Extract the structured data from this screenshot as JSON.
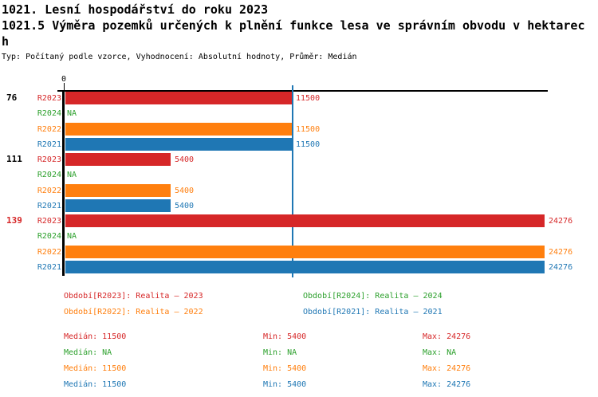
{
  "header": {
    "title": "1021. Lesní hospodářství do roku 2023",
    "subtitle": "1021.5 Výměra pozemků určených k plnění funkce lesa ve správním obvodu v hektarech",
    "meta": "Typ: Počítaný podle vzorce, Vyhodnocení: Absolutní hodnoty, Průměr: Medián"
  },
  "chart_data": {
    "type": "bar",
    "orientation": "horizontal",
    "title": "1021.5 Výměra pozemků určených k plnění funkce lesa ve správním obvodu v hektarech",
    "xlabel": "",
    "ylabel": "",
    "xlim": [
      0,
      24276
    ],
    "grid": false,
    "legend_position": "bottom",
    "axis": {
      "tick_label": "0",
      "median_line_value": 11500,
      "median_line_color": "#1f77b4"
    },
    "categories": [
      {
        "label": "76",
        "color": "#000000"
      },
      {
        "label": "111",
        "color": "#000000"
      },
      {
        "label": "139",
        "color": "#d62728"
      }
    ],
    "series": [
      {
        "name": "R2023",
        "color": "#d62728",
        "values": [
          11500,
          5400,
          24276
        ],
        "labels": [
          "11500",
          "5400",
          "24276"
        ]
      },
      {
        "name": "R2024",
        "color": "#2ca02c",
        "values": [
          null,
          null,
          null
        ],
        "labels": [
          "NA",
          "NA",
          "NA"
        ]
      },
      {
        "name": "R2022",
        "color": "#ff7f0e",
        "values": [
          11500,
          5400,
          24276
        ],
        "labels": [
          "11500",
          "5400",
          "24276"
        ]
      },
      {
        "name": "R2021",
        "color": "#1f77b4",
        "values": [
          11500,
          5400,
          24276
        ],
        "labels": [
          "11500",
          "5400",
          "24276"
        ]
      }
    ]
  },
  "legend": {
    "items": [
      {
        "label": "Období[R2023]: Realita – 2023",
        "color": "#d62728"
      },
      {
        "label": "Období[R2024]: Realita – 2024",
        "color": "#2ca02c"
      },
      {
        "label": "Období[R2022]: Realita – 2022",
        "color": "#ff7f0e"
      },
      {
        "label": "Období[R2021]: Realita – 2021",
        "color": "#1f77b4"
      }
    ]
  },
  "stats": {
    "labels": {
      "median": "Medián",
      "min": "Min",
      "max": "Max"
    },
    "rows": [
      {
        "series": "R2023",
        "color": "#d62728",
        "median": "11500",
        "min": "5400",
        "max": "24276"
      },
      {
        "series": "R2024",
        "color": "#2ca02c",
        "median": "NA",
        "min": "NA",
        "max": "NA"
      },
      {
        "series": "R2022",
        "color": "#ff7f0e",
        "median": "11500",
        "min": "5400",
        "max": "24276"
      },
      {
        "series": "R2021",
        "color": "#1f77b4",
        "median": "11500",
        "min": "5400",
        "max": "24276"
      }
    ]
  }
}
